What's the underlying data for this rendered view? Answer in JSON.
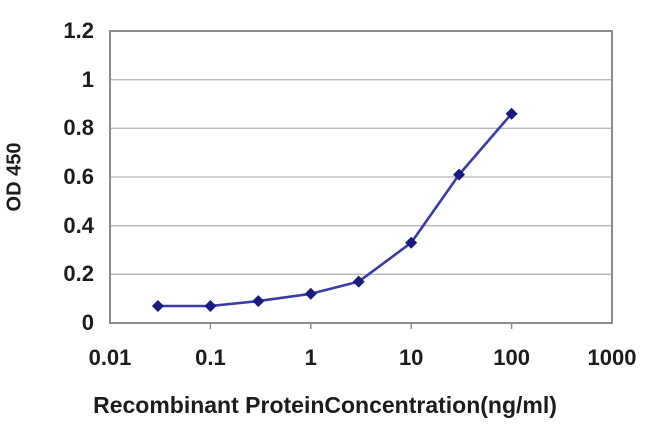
{
  "chart_data": {
    "type": "line",
    "title": "",
    "xlabel": "Recombinant ProteinConcentration(ng/ml)",
    "ylabel": "OD 450",
    "x_scale": "log",
    "xlim": [
      0.01,
      1000
    ],
    "ylim": [
      0,
      1.2
    ],
    "xticks": [
      0.01,
      0.1,
      1,
      10,
      100,
      1000
    ],
    "xtick_labels": [
      "0.01",
      "0.1",
      "1",
      "10",
      "100",
      "1000"
    ],
    "yticks": [
      0,
      0.2,
      0.4,
      0.6,
      0.8,
      1,
      1.2
    ],
    "ytick_labels": [
      "0",
      "0.2",
      "0.4",
      "0.6",
      "0.8",
      "1",
      "1.2"
    ],
    "grid": "horizontal",
    "legend": "none",
    "series": [
      {
        "x": [
          0.03,
          0.1,
          0.3,
          1,
          3,
          10,
          30,
          100
        ],
        "y": [
          0.07,
          0.07,
          0.09,
          0.12,
          0.17,
          0.33,
          0.61,
          0.86
        ],
        "marker": "diamond",
        "line_color": "#3b3ba6",
        "marker_color": "#1a1a80"
      }
    ],
    "colors": {
      "grid": "#b5b5b5",
      "border": "#8c8c8c",
      "tick": "#8c8c8c",
      "text": "#1c1c1c",
      "background": "#ffffff"
    }
  }
}
